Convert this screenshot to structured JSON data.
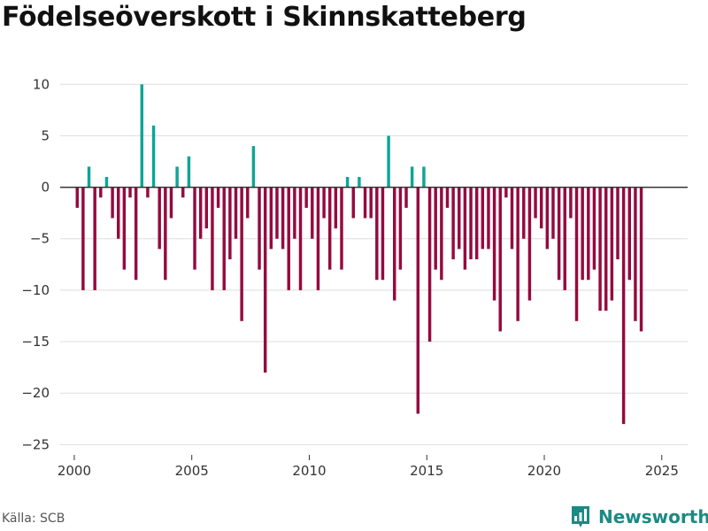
{
  "title": "Födelseöverskott i Skinnskatteberg",
  "source": "Källa: SCB",
  "brand": {
    "name": "Newsworthy",
    "icon": "bar-chart-logo-icon"
  },
  "colors": {
    "positive": "#0ea598",
    "negative": "#950a3e",
    "grid": "#dddddd",
    "zero_line": "#333333",
    "brand": "#1a8a84"
  },
  "chart_data": {
    "type": "bar",
    "title": "Födelseöverskott i Skinnskatteberg",
    "xlabel": "",
    "ylabel": "",
    "xlim": [
      1999.4,
      2026.1
    ],
    "ylim": [
      -26,
      12
    ],
    "yticks": [
      10,
      5,
      0,
      -5,
      -10,
      -15,
      -20,
      -25
    ],
    "ytick_labels": [
      "10",
      "5",
      "0",
      "−5",
      "−10",
      "−15",
      "−20",
      "−25"
    ],
    "xticks": [
      2000,
      2005,
      2010,
      2015,
      2020,
      2025
    ],
    "xtick_labels": [
      "2000",
      "2005",
      "2010",
      "2015",
      "2020",
      "2025"
    ],
    "bar_period": "quarter",
    "x_start": 2000.125,
    "values": [
      -2,
      -10,
      2,
      -10,
      -1,
      1,
      -3,
      -5,
      -8,
      -1,
      -9,
      10,
      -1,
      6,
      -6,
      -9,
      -3,
      2,
      -1,
      3,
      -8,
      -5,
      -4,
      -10,
      -2,
      -10,
      -7,
      -5,
      -13,
      -3,
      4,
      -8,
      -18,
      -6,
      -5,
      -6,
      -10,
      -5,
      -10,
      -2,
      -5,
      -10,
      -3,
      -8,
      -4,
      -8,
      1,
      -3,
      1,
      -3,
      -3,
      -9,
      -9,
      5,
      -11,
      -8,
      -2,
      2,
      -22,
      2,
      -15,
      -8,
      -9,
      -2,
      -7,
      -6,
      -8,
      -7,
      -7,
      -6,
      -6,
      -11,
      -14,
      -1,
      -6,
      -13,
      -5,
      -11,
      -3,
      -4,
      -6,
      -5,
      -9,
      -10,
      -3,
      -13,
      -9,
      -9,
      -8,
      -12,
      -12,
      -11,
      -7,
      -23,
      -9,
      -13,
      -14
    ]
  }
}
